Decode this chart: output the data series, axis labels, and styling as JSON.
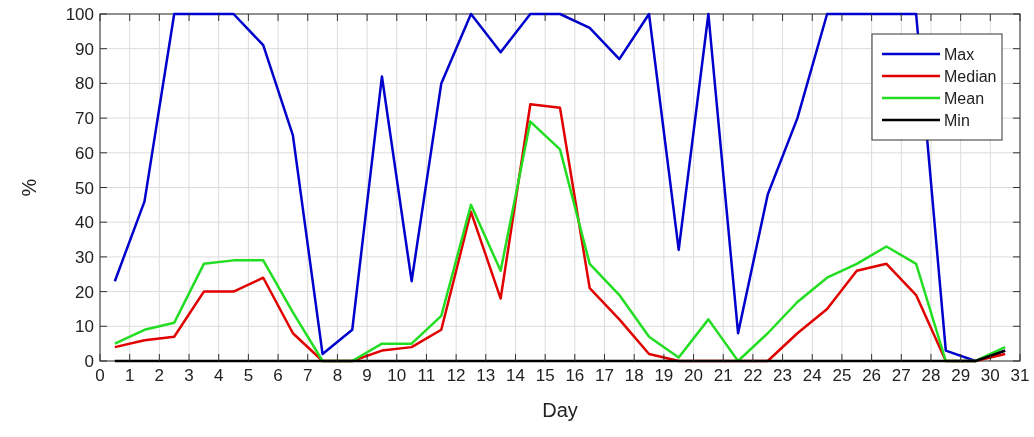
{
  "chart_data": {
    "type": "line",
    "xlabel": "Day",
    "ylabel": "%",
    "x": [
      0.5,
      1.5,
      2.5,
      3.5,
      4.5,
      5.5,
      6.5,
      7.5,
      8.5,
      9.5,
      10.5,
      11.5,
      12.5,
      13.5,
      14.5,
      15.5,
      16.5,
      17.5,
      18.5,
      19.5,
      20.5,
      21.5,
      22.5,
      23.5,
      24.5,
      25.5,
      26.5,
      27.5,
      28.5,
      29.5,
      30.5
    ],
    "series": [
      {
        "name": "Max",
        "color": "#0000cc",
        "values": [
          23,
          46,
          100,
          100,
          100,
          91,
          65,
          2,
          9,
          82,
          23,
          80,
          100,
          89,
          100,
          100,
          96,
          87,
          100,
          32,
          100,
          8,
          48,
          70,
          100,
          100,
          100,
          100,
          3,
          0,
          3
        ]
      },
      {
        "name": "Median",
        "color": "#e00000",
        "values": [
          4,
          6,
          7,
          20,
          20,
          24,
          8,
          0,
          0,
          3,
          4,
          9,
          43,
          18,
          74,
          73,
          21,
          12,
          2,
          0,
          0,
          0,
          0,
          8,
          15,
          26,
          28,
          19,
          0,
          0,
          2
        ]
      },
      {
        "name": "Mean",
        "color": "#22dd22",
        "values": [
          5,
          9,
          11,
          28,
          29,
          29,
          14,
          0,
          0,
          5,
          5,
          13,
          45,
          26,
          69,
          61,
          28,
          19,
          7,
          1,
          12,
          0,
          8,
          17,
          24,
          28,
          33,
          28,
          0,
          0,
          4
        ]
      },
      {
        "name": "Min",
        "color": "#000000",
        "values": [
          0,
          0,
          0,
          0,
          0,
          0,
          0,
          0,
          0,
          0,
          0,
          0,
          0,
          0,
          0,
          0,
          0,
          0,
          0,
          0,
          0,
          0,
          0,
          0,
          0,
          0,
          0,
          0,
          0,
          0,
          3
        ]
      }
    ],
    "xlim": [
      0,
      31
    ],
    "xticks": [
      0,
      1,
      2,
      3,
      4,
      5,
      6,
      7,
      8,
      9,
      10,
      11,
      12,
      13,
      14,
      15,
      16,
      17,
      18,
      19,
      20,
      21,
      22,
      23,
      24,
      25,
      26,
      27,
      28,
      29,
      30,
      31
    ],
    "ylim": [
      0,
      100
    ],
    "yticks": [
      0,
      10,
      20,
      30,
      40,
      50,
      60,
      70,
      80,
      90,
      100
    ],
    "grid": true,
    "legend": "top right",
    "marker": "none",
    "line_style": "solid"
  }
}
